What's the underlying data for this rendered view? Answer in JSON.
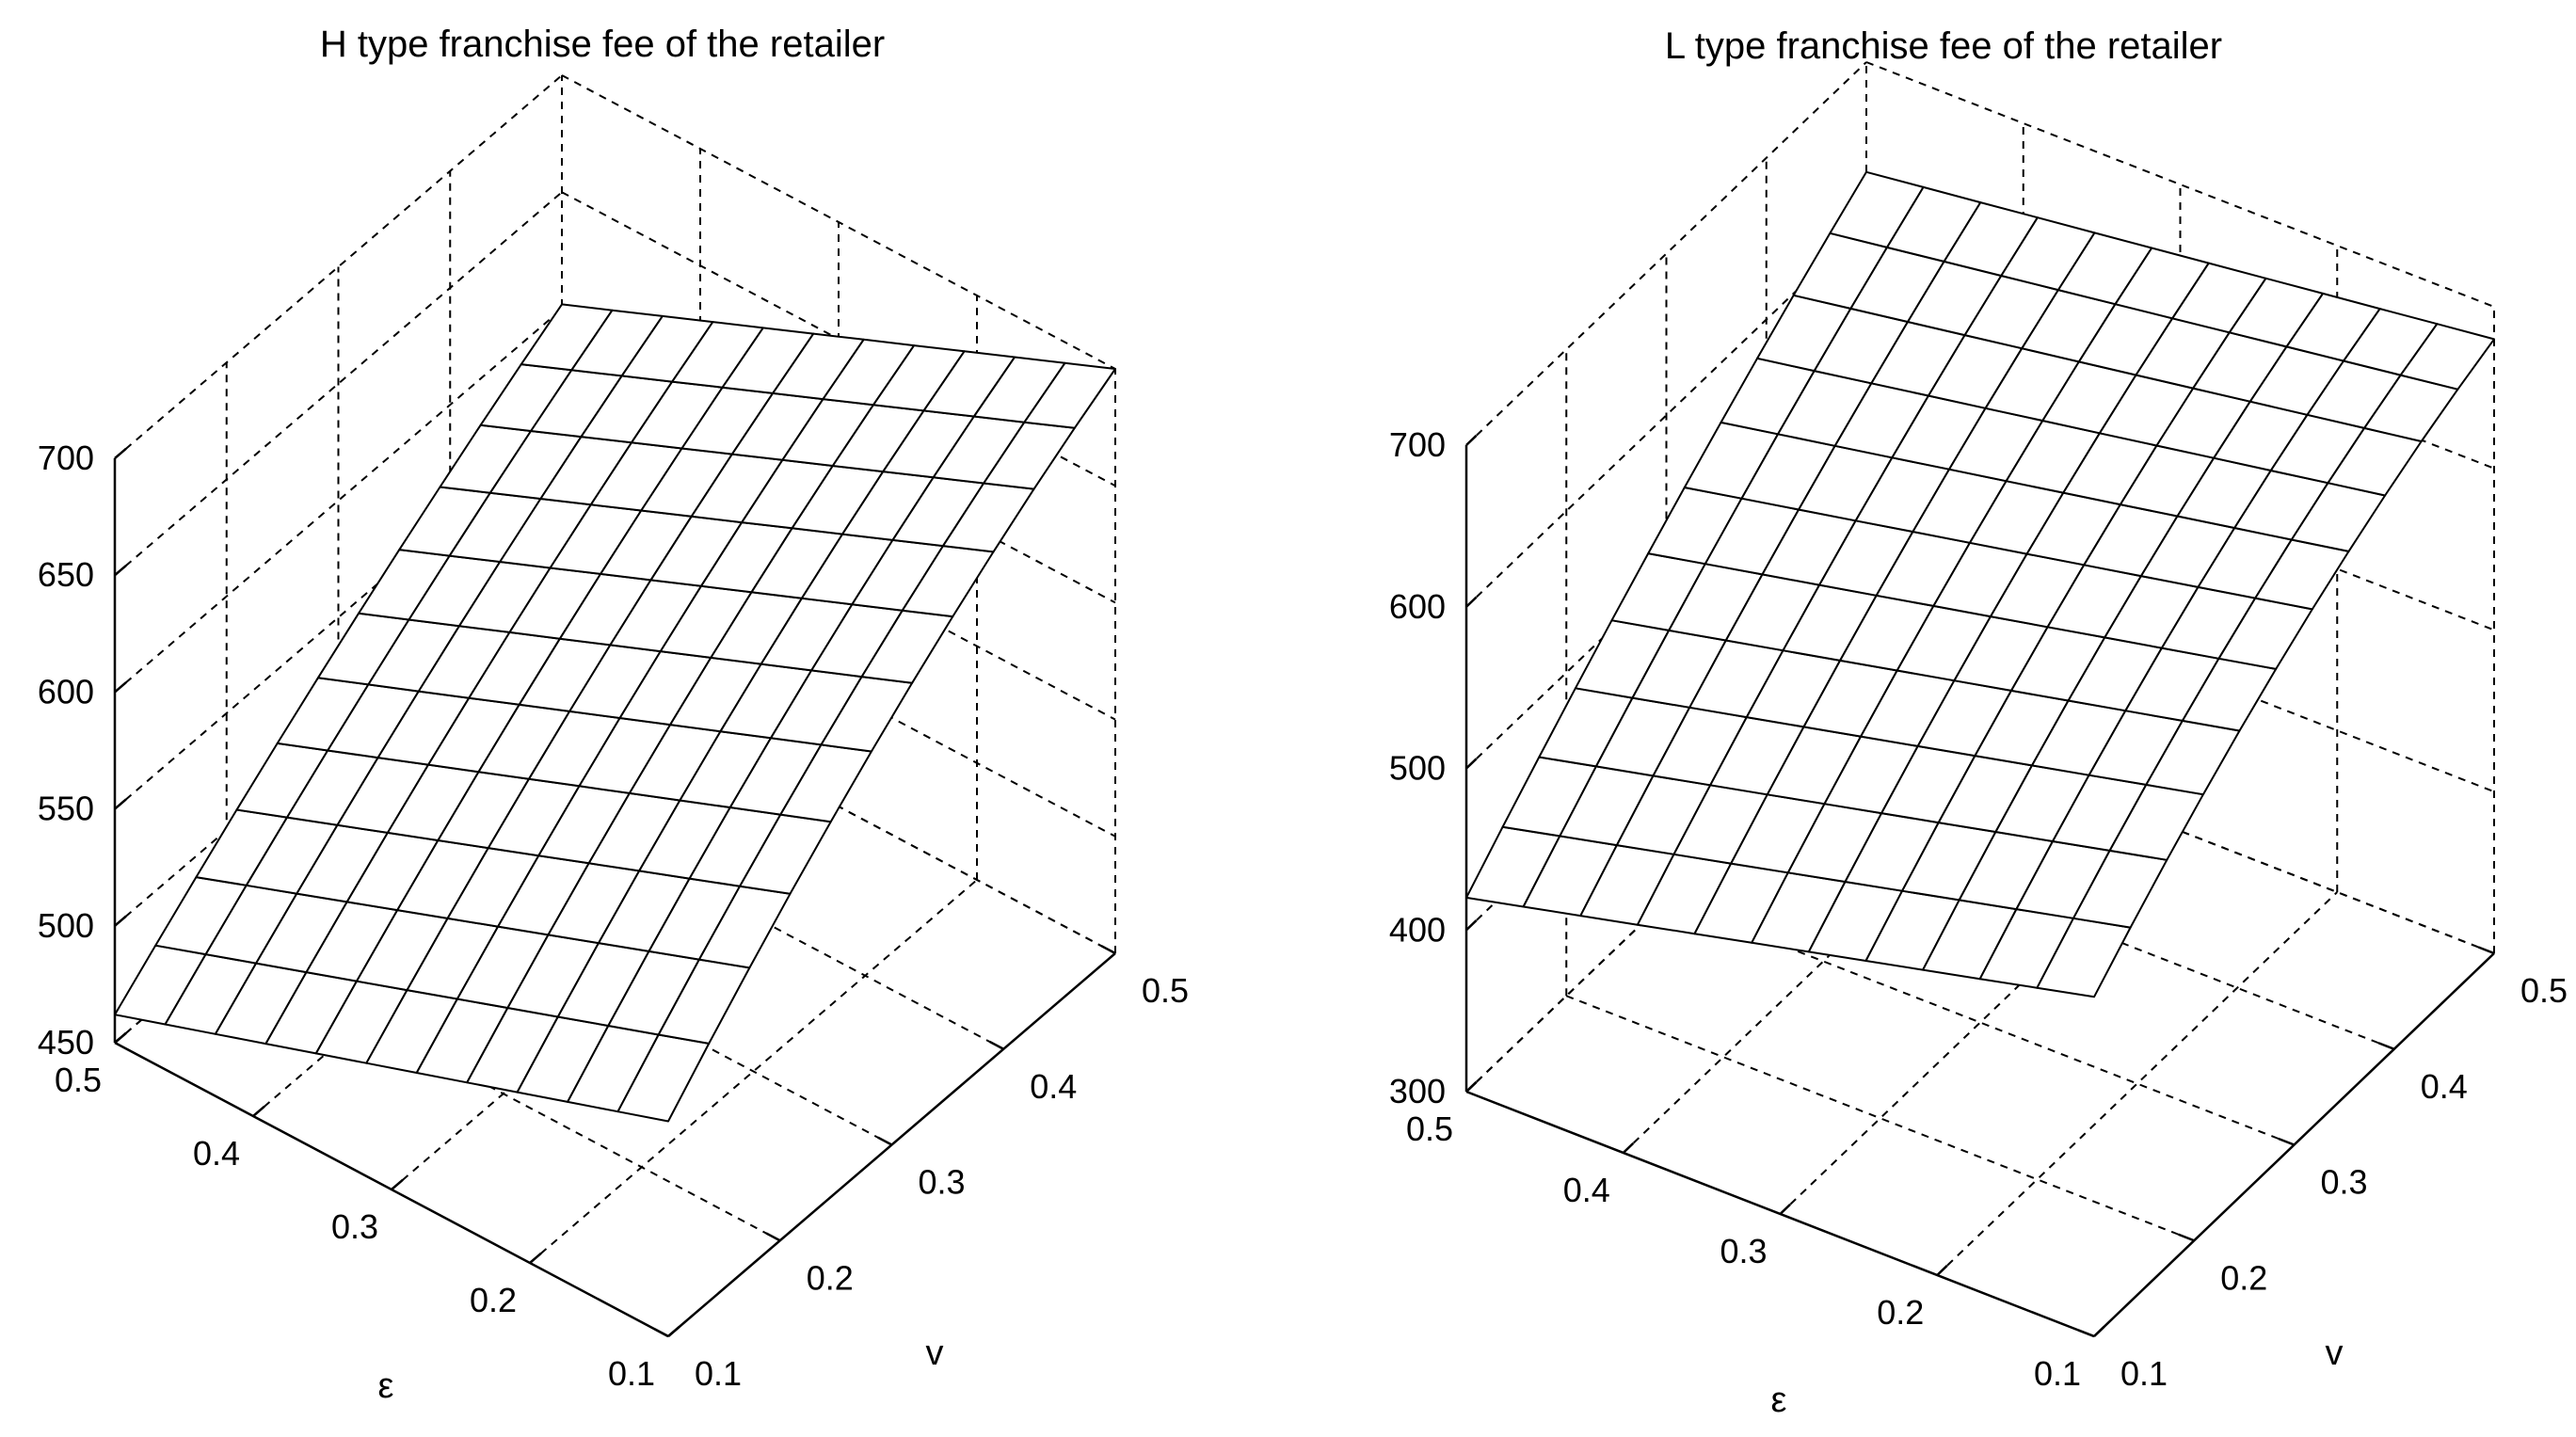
{
  "chart_data": [
    {
      "type": "surface3d",
      "title": "H type franchise fee of the retailer",
      "xlabel": "ε",
      "ylabel": "v",
      "zlabel": "",
      "x_ticks": [
        0.1,
        0.2,
        0.3,
        0.4,
        0.5
      ],
      "y_ticks": [
        0.1,
        0.2,
        0.3,
        0.4,
        0.5
      ],
      "z_ticks": [
        450,
        500,
        550,
        600,
        650,
        700
      ],
      "xlim": [
        0.1,
        0.5
      ],
      "ylim": [
        0.1,
        0.5
      ],
      "zlim": [
        450,
        700
      ],
      "grid": true,
      "mesh_resolution": 11,
      "corners": {
        "eps_0.5_v_0.1": 462,
        "eps_0.1_v_0.1": 542,
        "eps_0.5_v_0.5": 602,
        "eps_0.1_v_0.5": 700
      },
      "curvature": 12
    },
    {
      "type": "surface3d",
      "title": "L type franchise fee of the retailer",
      "xlabel": "ε",
      "ylabel": "v",
      "zlabel": "",
      "x_ticks": [
        0.1,
        0.2,
        0.3,
        0.4,
        0.5
      ],
      "y_ticks": [
        0.1,
        0.2,
        0.3,
        0.4,
        0.5
      ],
      "z_ticks": [
        300,
        400,
        500,
        600,
        700
      ],
      "xlim": [
        0.1,
        0.5
      ],
      "ylim": [
        0.1,
        0.5
      ],
      "zlim": [
        300,
        700
      ],
      "grid": true,
      "mesh_resolution": 11,
      "corners": {
        "eps_0.5_v_0.1": 420,
        "eps_0.1_v_0.1": 510,
        "eps_0.5_v_0.5": 632,
        "eps_0.1_v_0.5": 680
      },
      "curvature": 18
    }
  ]
}
